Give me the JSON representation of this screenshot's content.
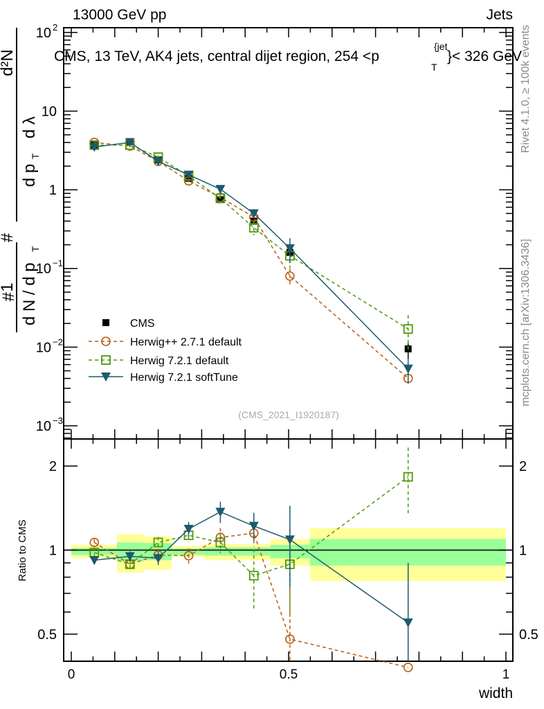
{
  "chart_data": [
    {
      "type": "line",
      "panel": "main",
      "title_left": "13000 GeV pp",
      "title_right": "Jets",
      "annotation": "CMS, 13 TeV, AK4 jets, central dijet region, 254 <p",
      "annotation_sub": "T",
      "annotation_sup": "{jet",
      "annotation_tail": "}< 326 GeV",
      "ylabel": "1 / dN / dp_T # d²N / dp_T dλ",
      "ylabel_parts": {
        "one": "1",
        "denom": "d N / d p",
        "denom_sub": "T",
        "hash": "#",
        "num": "d²N",
        "num2": "d p",
        "num2_sub": "T",
        "num2_tail": "d λ"
      },
      "yscale": "log",
      "ylim": [
        0.00068,
        115
      ],
      "yticks": [
        {
          "v": 100,
          "label": "10",
          "sup": "2"
        },
        {
          "v": 10,
          "label": "10",
          "sup": ""
        },
        {
          "v": 1,
          "label": "1",
          "sup": ""
        },
        {
          "v": 0.1,
          "label": "10",
          "sup": "−1"
        },
        {
          "v": 0.01,
          "label": "10",
          "sup": "−2"
        },
        {
          "v": 0.001,
          "label": "10",
          "sup": "−3"
        }
      ],
      "x": [
        0.053,
        0.135,
        0.2,
        0.27,
        0.343,
        0.42,
        0.503,
        0.775
      ],
      "series": [
        {
          "name": "CMS",
          "marker": "filled-square",
          "values": [
            3.7,
            4.1,
            2.4,
            1.4,
            0.75,
            0.4,
            0.16,
            0.0095
          ]
        },
        {
          "name": "Herwig++ 2.7.1 default",
          "marker": "open-circle",
          "line": "dashed",
          "values": [
            4.0,
            3.6,
            2.3,
            1.3,
            0.8,
            0.45,
            0.08,
            0.004
          ]
        },
        {
          "name": "Herwig 7.2.1 default",
          "marker": "open-square",
          "line": "dashed",
          "values": [
            3.7,
            3.7,
            2.6,
            1.5,
            0.78,
            0.33,
            0.145,
            0.017
          ]
        },
        {
          "name": "Herwig 7.2.1 softTune",
          "marker": "filled-triangle-down",
          "line": "solid",
          "values": [
            3.5,
            4.0,
            2.3,
            1.55,
            1.02,
            0.5,
            0.18,
            0.0053
          ]
        }
      ],
      "watermark": "(CMS_2021_I1920187)",
      "legend_position": "lower-left"
    },
    {
      "type": "line",
      "panel": "ratio",
      "ylabel": "Ratio to CMS",
      "xlabel": "width",
      "yscale": "log",
      "ylim": [
        0.4,
        2.5
      ],
      "xlim": [
        0,
        1
      ],
      "yticks": [
        {
          "v": 2,
          "label": "2"
        },
        {
          "v": 1,
          "label": "1"
        },
        {
          "v": 0.5,
          "label": "0.5"
        }
      ],
      "xticks": [
        {
          "v": 0,
          "label": "0"
        },
        {
          "v": 0.5,
          "label": "0.5"
        },
        {
          "v": 1,
          "label": "1"
        }
      ],
      "bin_edges": [
        0,
        0.105,
        0.166,
        0.231,
        0.306,
        0.38,
        0.458,
        0.549,
        1.0
      ],
      "band_total": [
        [
          0.935,
          1.045
        ],
        [
          0.83,
          1.14
        ],
        [
          0.85,
          1.12
        ],
        [
          0.945,
          1.035
        ],
        [
          0.92,
          1.05
        ],
        [
          0.92,
          1.05
        ],
        [
          0.88,
          1.095
        ],
        [
          0.775,
          1.2
        ]
      ],
      "band_stat": [
        [
          0.96,
          1.017
        ],
        [
          0.91,
          1.065
        ],
        [
          0.92,
          1.06
        ],
        [
          0.96,
          1.012
        ],
        [
          0.955,
          1.023
        ],
        [
          0.955,
          1.023
        ],
        [
          0.935,
          1.045
        ],
        [
          0.88,
          1.095
        ]
      ],
      "x": [
        0.053,
        0.135,
        0.2,
        0.27,
        0.343,
        0.42,
        0.503,
        0.775
      ],
      "series": [
        {
          "name": "Herwig++ 2.7.1 default",
          "values": [
            1.065,
            0.89,
            0.96,
            0.955,
            1.11,
            1.15,
            0.48,
            0.38
          ],
          "err": [
            0.03,
            0.03,
            0.05,
            0.06,
            0.09,
            0.12,
            0.25,
            0.15
          ]
        },
        {
          "name": "Herwig 7.2.1 default",
          "values": [
            0.98,
            0.89,
            1.065,
            1.13,
            1.065,
            0.81,
            0.89,
            1.83
          ],
          "err": [
            0.04,
            0.04,
            0.05,
            0.06,
            0.09,
            0.2,
            0.3,
            0.5
          ]
        },
        {
          "name": "Herwig 7.2.1 softTune",
          "values": [
            0.92,
            0.95,
            0.935,
            1.19,
            1.37,
            1.22,
            1.09,
            0.55
          ],
          "err": [
            0.03,
            0.04,
            0.05,
            0.07,
            0.12,
            0.14,
            0.35,
            0.35
          ]
        }
      ]
    }
  ],
  "side_labels": {
    "rivet": "Rivet 4.1.0, ≥ 100k events",
    "mcplots": "mcplots.cern.ch [arXiv:1306.3436]"
  },
  "colors": {
    "cms": "#000000",
    "herwigpp": "#b85c10",
    "h721": "#4c9a0a",
    "soft": "#1d5a6e",
    "band_total": "#ffff99",
    "band_stat": "#99ff99"
  }
}
